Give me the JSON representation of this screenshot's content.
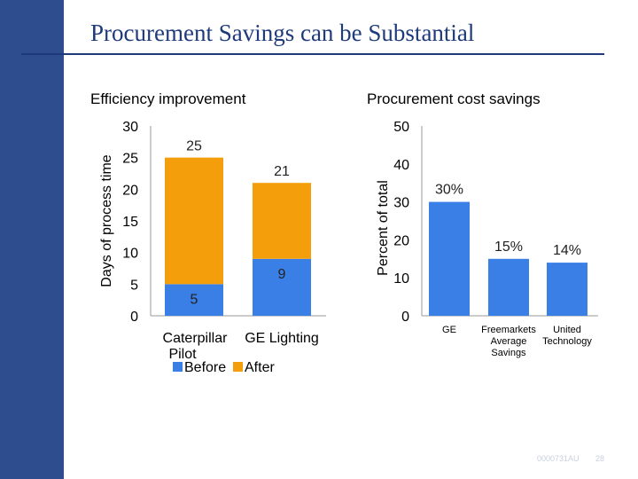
{
  "slide": {
    "title": "Procurement Savings can be Substantial",
    "footer_code": "0000731AU",
    "page_number": "28",
    "brand_color": "#2e4d8f"
  },
  "chart_data": [
    {
      "type": "bar",
      "stacked": true,
      "title": "Efficiency improvement",
      "xlabel": "",
      "ylabel": "Days of process time",
      "ylim": [
        0,
        30
      ],
      "yticks": [
        0,
        5,
        10,
        15,
        20,
        25,
        30
      ],
      "categories": [
        "Caterpillar Pilot",
        "GE Lighting"
      ],
      "series": [
        {
          "name": "Before",
          "values": [
            5,
            9
          ],
          "color": "#3a7fe6"
        },
        {
          "name": "After",
          "values": [
            20,
            12
          ],
          "color": "#f59e0b"
        }
      ],
      "data_labels": [
        {
          "category": "Caterpillar Pilot",
          "before": "5",
          "total": "25"
        },
        {
          "category": "GE Lighting",
          "before": "9",
          "total": "21"
        }
      ],
      "legend_position": "bottom",
      "grid": false
    },
    {
      "type": "bar",
      "title": "Procurement cost savings",
      "xlabel": "",
      "ylabel": "Percent of total",
      "ylim": [
        0,
        50
      ],
      "yticks": [
        0,
        10,
        20,
        30,
        40,
        50
      ],
      "categories": [
        "GE",
        "Freemarkets Average Savings",
        "United Technology"
      ],
      "values": [
        30,
        15,
        14
      ],
      "data_labels": [
        "30%",
        "15%",
        "14%"
      ],
      "color": "#3a7fe6",
      "grid": false
    }
  ]
}
